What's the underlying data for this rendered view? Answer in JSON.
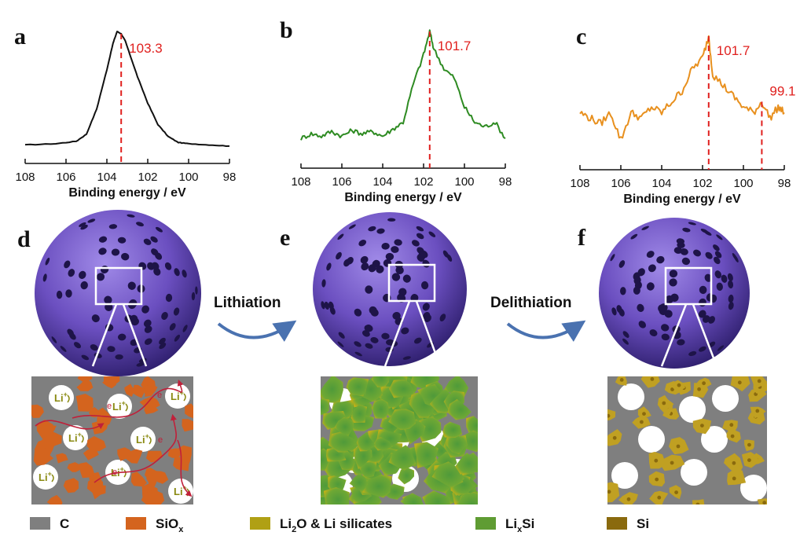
{
  "colors": {
    "axis": "#111111",
    "peak_marker": "#e0201e",
    "sphere": "#6b4fc0",
    "zoom_box": "#ffffff",
    "arrow": "#4a72b0"
  },
  "chart_data": [
    {
      "type": "line",
      "panel": "a",
      "xlabel": "Binding energy / eV",
      "xlim": [
        108,
        98
      ],
      "x_ticks": [
        "108",
        "106",
        "104",
        "102",
        "100",
        "98"
      ],
      "color": "#111111",
      "grid": false,
      "series": [
        {
          "x": [
            108,
            106.5,
            105.5,
            105,
            104.5,
            104,
            103.7,
            103.5,
            103.3,
            103.1,
            102.9,
            102.5,
            102,
            101.5,
            101,
            100.5,
            100,
            99,
            98
          ],
          "y": [
            0.05,
            0.06,
            0.08,
            0.14,
            0.35,
            0.68,
            0.9,
            1.0,
            0.98,
            0.92,
            0.82,
            0.62,
            0.4,
            0.22,
            0.12,
            0.07,
            0.06,
            0.05,
            0.04
          ]
        }
      ],
      "peaks": [
        {
          "x": 103.3,
          "label": "103.3"
        }
      ]
    },
    {
      "type": "line",
      "panel": "b",
      "xlabel": "Binding energy / eV",
      "xlim": [
        108,
        98
      ],
      "x_ticks": [
        "108",
        "106",
        "104",
        "102",
        "100",
        "98"
      ],
      "color": "#2e8b22",
      "grid": false,
      "series": [
        {
          "x": [
            108,
            107.5,
            107,
            106.5,
            106,
            105.5,
            105,
            104.5,
            104,
            103.5,
            103,
            102.5,
            102,
            101.7,
            101.5,
            101,
            100.5,
            100,
            99.5,
            99,
            98.5,
            98
          ],
          "y": [
            0.08,
            0.12,
            0.1,
            0.14,
            0.1,
            0.15,
            0.12,
            0.14,
            0.1,
            0.16,
            0.22,
            0.55,
            0.8,
            1.0,
            0.85,
            0.68,
            0.6,
            0.35,
            0.22,
            0.18,
            0.22,
            0.08
          ]
        }
      ],
      "peaks": [
        {
          "x": 101.7,
          "label": "101.7"
        }
      ]
    },
    {
      "type": "line",
      "panel": "c",
      "xlabel": "Binding energy / eV",
      "xlim": [
        108,
        98
      ],
      "x_ticks": [
        "108",
        "106",
        "104",
        "102",
        "100",
        "98"
      ],
      "color": "#e8901e",
      "grid": false,
      "series": [
        {
          "x": [
            108,
            107.5,
            107,
            106.5,
            106,
            105.5,
            105,
            104.5,
            104,
            103.5,
            103,
            102.5,
            102,
            101.7,
            101.5,
            101,
            100.5,
            100,
            99.5,
            99.1,
            98.7,
            98.3,
            98
          ],
          "y": [
            0.3,
            0.25,
            0.2,
            0.3,
            0.05,
            0.3,
            0.25,
            0.35,
            0.3,
            0.4,
            0.5,
            0.7,
            0.8,
            1.0,
            0.65,
            0.55,
            0.45,
            0.35,
            0.3,
            0.4,
            0.25,
            0.35,
            0.3
          ]
        }
      ],
      "peaks": [
        {
          "x": 101.7,
          "label": "101.7"
        },
        {
          "x": 99.1,
          "label": "99.1"
        }
      ]
    }
  ],
  "panels": {
    "a": "a",
    "b": "b",
    "c": "c",
    "d": "d",
    "e": "e",
    "f": "f"
  },
  "steps": {
    "lithiation": "Lithiation",
    "delithiation": "Delithiation"
  },
  "schematic_d": {
    "li_label": "Li",
    "li_sup": "+",
    "electron_label": "e"
  },
  "legend": [
    {
      "text": "C",
      "sub": "",
      "after": "",
      "color": "#7f7f7f"
    },
    {
      "text": "SiO",
      "sub": "x",
      "after": "",
      "color": "#d4641e"
    },
    {
      "text": "Li",
      "sub": "2",
      "after": "O & Li silicates",
      "color": "#b0a014"
    },
    {
      "text": "Li",
      "sub": "x",
      "after": "Si",
      "color": "#5f9c33"
    },
    {
      "text": "Si",
      "sub": "",
      "after": "",
      "color": "#8a6a0e"
    }
  ]
}
